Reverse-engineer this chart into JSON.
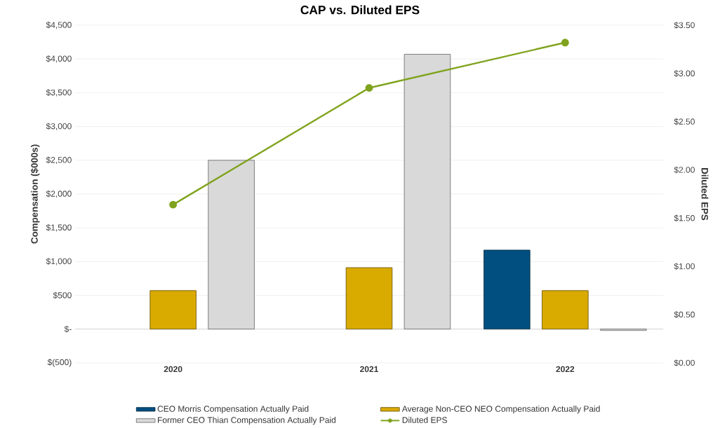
{
  "chart_data": {
    "type": "bar",
    "title": "CAP vs. Diluted EPS",
    "ylabel": "Compensation ($000s)",
    "y2label": "Diluted EPS",
    "categories": [
      "2020",
      "2021",
      "2022"
    ],
    "series": [
      {
        "name": "CEO Morris Compensation Actually Paid",
        "color": "#004f80",
        "values": [
          null,
          null,
          1170
        ]
      },
      {
        "name": "Average Non-CEO NEO Compensation Actually Paid",
        "color": "#d9aa00",
        "values": [
          570,
          910,
          570
        ]
      },
      {
        "name": "Former CEO Thian Compensation Actually Paid",
        "color": "#d9d9d9",
        "values": [
          2500,
          4070,
          -20
        ]
      },
      {
        "name": "Diluted EPS",
        "type": "line",
        "axis": "y2",
        "color": "#7fa31c",
        "marker": "circle",
        "values": [
          1.64,
          2.85,
          3.32
        ]
      }
    ],
    "ylim": [
      -500,
      4500
    ],
    "yticks": [
      {
        "value": -500,
        "label": "$(500)"
      },
      {
        "value": 0,
        "label": "$-"
      },
      {
        "value": 500,
        "label": "$500"
      },
      {
        "value": 1000,
        "label": "$1,000"
      },
      {
        "value": 1500,
        "label": "$1,500"
      },
      {
        "value": 2000,
        "label": "$2,000"
      },
      {
        "value": 2500,
        "label": "$2,500"
      },
      {
        "value": 3000,
        "label": "$3,000"
      },
      {
        "value": 3500,
        "label": "$3,500"
      },
      {
        "value": 4000,
        "label": "$4,000"
      },
      {
        "value": 4500,
        "label": "$4,500"
      }
    ],
    "y2lim": [
      0,
      3.5
    ],
    "y2ticks": [
      {
        "value": 0,
        "label": "$0.00"
      },
      {
        "value": 0.5,
        "label": "$0.50"
      },
      {
        "value": 1,
        "label": "$1.00"
      },
      {
        "value": 1.5,
        "label": "$1.50"
      },
      {
        "value": 2,
        "label": "$2.00"
      },
      {
        "value": 2.5,
        "label": "$2.50"
      },
      {
        "value": 3,
        "label": "$3.00"
      },
      {
        "value": 3.5,
        "label": "$3.50"
      }
    ],
    "grid": "y",
    "legend": "bottom"
  }
}
